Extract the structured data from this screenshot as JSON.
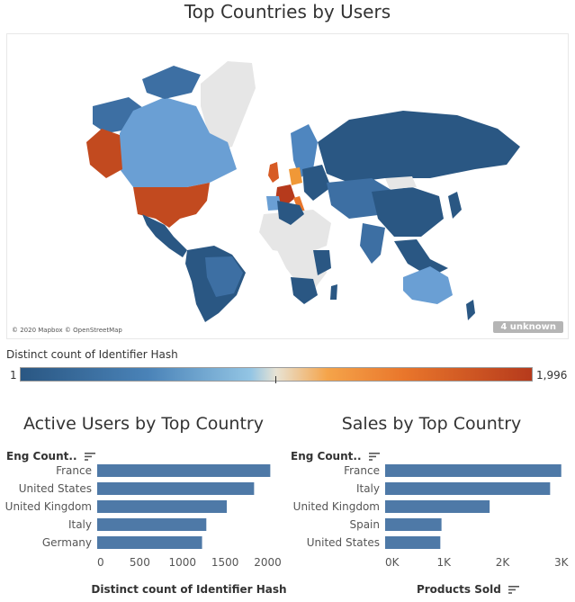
{
  "map": {
    "title": "Top Countries by Users",
    "attribution": "© 2020 Mapbox © OpenStreetMap",
    "unknown_badge": "4 unknown",
    "legend": {
      "title": "Distinct count of Identifier Hash",
      "min": "1",
      "max": "1,996"
    },
    "colors": {
      "low": "#2a5783",
      "mid": "#4f86bf",
      "light": "#6a9fd4",
      "high": "#c24a1f",
      "peak": "#b63a1c",
      "orange": "#f09837",
      "nodata": "#e6e6e6"
    }
  },
  "chart1": {
    "title": "Active Users by Top Country",
    "header": "Eng Count..",
    "axis_title": "Distinct count of Identifier Hash"
  },
  "chart2": {
    "title": "Sales by Top Country",
    "header": "Eng Count..",
    "axis_title": "Products Sold"
  },
  "chart_data": [
    {
      "type": "bar",
      "orientation": "horizontal",
      "title": "Active Users by Top Country",
      "categories": [
        "France",
        "United States",
        "United Kingdom",
        "Italy",
        "Germany"
      ],
      "values": [
        2030,
        1840,
        1520,
        1280,
        1230
      ],
      "xlabel": "Distinct count of Identifier Hash",
      "xlim": [
        0,
        2100
      ],
      "ticks": [
        0,
        500,
        1000,
        1500,
        2000
      ],
      "tick_labels": [
        "0",
        "500",
        "1000",
        "1500",
        "2000"
      ],
      "color": "#4e79a7"
    },
    {
      "type": "bar",
      "orientation": "horizontal",
      "title": "Sales by Top Country",
      "categories": [
        "France",
        "Italy",
        "United Kingdom",
        "Spain",
        "United States"
      ],
      "values": [
        3000,
        2810,
        1780,
        960,
        940
      ],
      "xlabel": "Products Sold",
      "xlim": [
        0,
        3050
      ],
      "ticks": [
        0,
        1000,
        2000,
        3000
      ],
      "tick_labels": [
        "0K",
        "1K",
        "2K",
        "3K"
      ],
      "color": "#4e79a7"
    }
  ]
}
